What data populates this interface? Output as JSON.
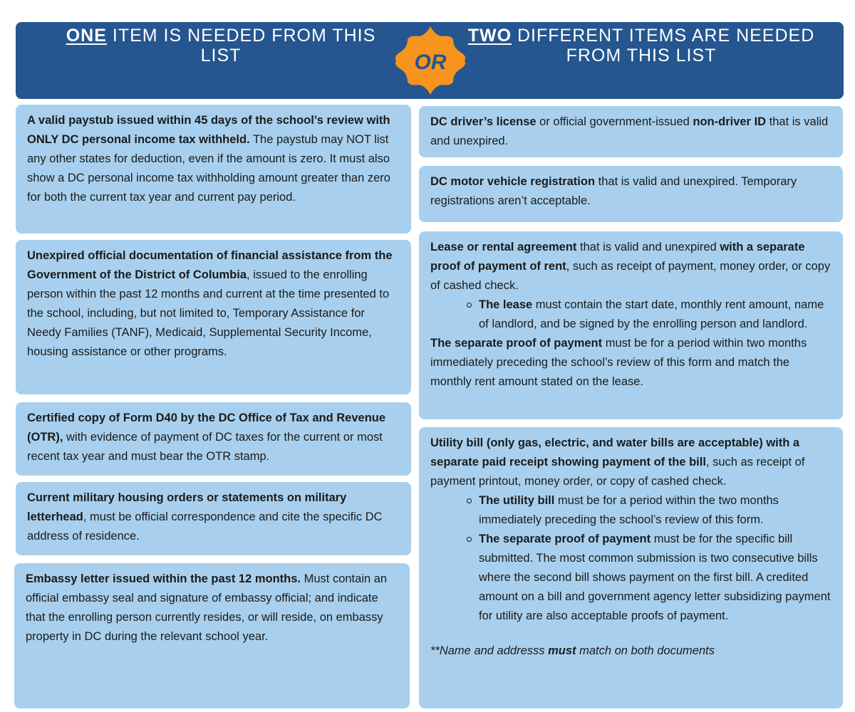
{
  "header": {
    "left": {
      "emphasis": "ONE",
      "rest": " ITEM IS NEEDED FROM THIS LIST"
    },
    "badge": "OR",
    "right": {
      "emphasis": "TWO",
      "rest": " DIFFERENT ITEMS ARE NEEDED FROM THIS LIST"
    }
  },
  "colors": {
    "header": "#25568f",
    "box": "#a8d0ee",
    "badge": "#f7941d",
    "badge_text": "#25568f"
  },
  "left_items": [
    {
      "blocks": [
        {
          "type": "p",
          "runs": [
            {
              "b": true,
              "t": "A valid paystub issued within 45 days of the school’s review with ONLY DC personal income tax withheld."
            },
            {
              "b": false,
              "t": " The paystub may NOT list any other states for deduction, even if the amount is zero. It must also show a DC personal income tax withholding amount greater than zero for both the current tax year and current pay period."
            }
          ]
        }
      ]
    },
    {
      "blocks": [
        {
          "type": "p",
          "runs": [
            {
              "b": true,
              "t": "Unexpired official documentation of financial assistance from the Government of the District of Columbia"
            },
            {
              "b": false,
              "t": ", issued to the enrolling person within the past 12 months and current at the time presented to the school, including, but not limited to, Temporary Assistance for Needy Families (TANF), Medicaid, Supplemental Security Income, housing assistance or other programs."
            }
          ]
        }
      ]
    },
    {
      "blocks": [
        {
          "type": "p",
          "runs": [
            {
              "b": true,
              "t": "Certified copy of Form D40 by the DC Office of Tax and Revenue (OTR),"
            },
            {
              "b": false,
              "t": " with evidence of payment of DC taxes for the current or most recent tax year and must bear the OTR stamp."
            }
          ]
        }
      ]
    },
    {
      "blocks": [
        {
          "type": "p",
          "runs": [
            {
              "b": true,
              "t": "Current military housing orders or statements on military letterhead"
            },
            {
              "b": false,
              "t": ", must be official correspondence and cite the specific DC address of residence."
            }
          ]
        }
      ]
    },
    {
      "blocks": [
        {
          "type": "p",
          "runs": [
            {
              "b": true,
              "t": "Embassy letter issued within the past 12 months."
            },
            {
              "b": false,
              "t": " Must contain an official embassy seal and signature of embassy official; and indicate that the enrolling person currently resides, or will reside, on embassy property in DC during the relevant school year."
            }
          ]
        }
      ]
    }
  ],
  "right_items": [
    {
      "blocks": [
        {
          "type": "p",
          "runs": [
            {
              "b": true,
              "t": "DC driver’s license"
            },
            {
              "b": false,
              "t": " or official government-issued "
            },
            {
              "b": true,
              "t": "non-driver ID"
            },
            {
              "b": false,
              "t": " that is valid and unexpired."
            }
          ]
        }
      ]
    },
    {
      "blocks": [
        {
          "type": "p",
          "runs": [
            {
              "b": true,
              "t": "DC motor vehicle registration"
            },
            {
              "b": false,
              "t": " that is valid and unexpired. Temporary registrations aren’t acceptable."
            }
          ]
        }
      ]
    },
    {
      "blocks": [
        {
          "type": "p",
          "runs": [
            {
              "b": true,
              "t": "Lease or rental agreement"
            },
            {
              "b": false,
              "t": " that is valid and unexpired "
            },
            {
              "b": true,
              "t": "with a separate proof of payment of rent"
            },
            {
              "b": false,
              "t": ", such as receipt of payment, money order, or copy of cashed check."
            }
          ]
        },
        {
          "type": "li",
          "runs": [
            {
              "b": true,
              "t": "The lease"
            },
            {
              "b": false,
              "t": " must contain the start date, monthly rent amount, name of landlord, and be signed by the enrolling person and landlord."
            }
          ]
        },
        {
          "type": "p",
          "runs": [
            {
              "b": true,
              "t": "The separate proof of payment"
            },
            {
              "b": false,
              "t": " must be for a period within two months immediately preceding the school’s review of this form and match the monthly rent amount stated on the lease."
            }
          ]
        }
      ]
    },
    {
      "blocks": [
        {
          "type": "p",
          "runs": [
            {
              "b": true,
              "t": "Utility bill (only gas, electric, and water bills are acceptable) with a separate paid receipt showing payment of the bill"
            },
            {
              "b": false,
              "t": ", such as receipt of payment printout, money order, or copy of cashed check."
            }
          ]
        },
        {
          "type": "li",
          "runs": [
            {
              "b": true,
              "t": "The utility bill"
            },
            {
              "b": false,
              "t": " must be for a period within the two months immediately preceding the school’s review of this form."
            }
          ]
        },
        {
          "type": "li",
          "runs": [
            {
              "b": true,
              "t": "The separate proof of payment"
            },
            {
              "b": false,
              "t": " must be for the specific bill submitted. The most common submission is two consecutive bills where the second bill shows payment on the first bill. A credited amount on a bill and government agency letter subsidizing payment for utility are also acceptable proofs of payment."
            }
          ]
        },
        {
          "type": "note",
          "runs": [
            {
              "b": false,
              "t": "**Name and addresss "
            },
            {
              "b": true,
              "t": "must"
            },
            {
              "b": false,
              "t": " match on both documents"
            }
          ]
        }
      ]
    }
  ]
}
